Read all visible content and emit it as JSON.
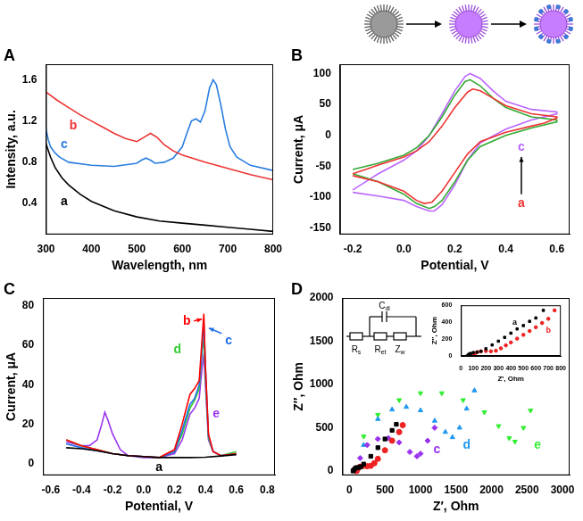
{
  "chart_data": [
    {
      "panel": "A",
      "type": "line",
      "x_label": "Wavelength, nm",
      "y_label": "Intensity, a.u.",
      "xlim": [
        300,
        800
      ],
      "xticks": [
        300,
        400,
        500,
        600,
        700,
        800
      ],
      "ylim": [
        0.1,
        1.75
      ],
      "yticks": [
        0.4,
        0.8,
        1.2,
        1.6
      ],
      "grid": false,
      "series": [
        {
          "name": "a",
          "color": "#000000",
          "line_style": "solid",
          "x": [
            300,
            310,
            320,
            335,
            350,
            375,
            400,
            450,
            500,
            550,
            600,
            650,
            700,
            750,
            800
          ],
          "values": [
            0.98,
            0.85,
            0.75,
            0.65,
            0.58,
            0.49,
            0.42,
            0.33,
            0.27,
            0.23,
            0.21,
            0.19,
            0.17,
            0.15,
            0.13
          ]
        },
        {
          "name": "b",
          "color": "#ee3333",
          "line_style": "solid",
          "x": [
            300,
            325,
            350,
            375,
            400,
            425,
            450,
            475,
            500,
            515,
            530,
            545,
            560,
            580,
            600,
            650,
            700,
            750,
            800
          ],
          "values": [
            1.48,
            1.4,
            1.33,
            1.26,
            1.2,
            1.14,
            1.08,
            1.03,
            1.0,
            1.04,
            1.08,
            1.04,
            0.97,
            0.91,
            0.87,
            0.8,
            0.74,
            0.68,
            0.63
          ]
        },
        {
          "name": "c",
          "color": "#2a7de1",
          "line_style": "solid",
          "x": [
            300,
            305,
            310,
            320,
            330,
            350,
            400,
            450,
            500,
            510,
            520,
            530,
            540,
            560,
            580,
            600,
            610,
            620,
            630,
            640,
            650,
            660,
            668,
            675,
            685,
            695,
            705,
            720,
            750,
            800
          ],
          "values": [
            1.12,
            1.02,
            0.95,
            0.89,
            0.85,
            0.8,
            0.77,
            0.76,
            0.79,
            0.82,
            0.84,
            0.82,
            0.79,
            0.8,
            0.84,
            0.95,
            1.08,
            1.2,
            1.22,
            1.19,
            1.3,
            1.52,
            1.6,
            1.55,
            1.35,
            1.12,
            0.95,
            0.85,
            0.77,
            0.72
          ]
        }
      ]
    },
    {
      "panel": "B",
      "type": "line",
      "x_label": "Potential, V",
      "y_label": "Current, μA",
      "xlim": [
        -0.25,
        0.65
      ],
      "xticks": [
        -0.2,
        {
          "value": 0,
          "label": "0.0"
        },
        0.2,
        0.4,
        0.6
      ],
      "ylim": [
        -160,
        115
      ],
      "yticks": [
        -150,
        -100,
        -50,
        0,
        50,
        100
      ],
      "grid": false,
      "series": [
        {
          "name": "a",
          "color": "#ee3333",
          "line_style": "solid",
          "x": [
            -0.2,
            -0.15,
            -0.1,
            0,
            0.05,
            0.1,
            0.15,
            0.2,
            0.25,
            0.27,
            0.3,
            0.35,
            0.4,
            0.5,
            0.6,
            0.6,
            0.55,
            0.5,
            0.4,
            0.3,
            0.25,
            0.2,
            0.15,
            0.11,
            0.08,
            0.05,
            0,
            -0.1,
            -0.2
          ],
          "values": [
            -62,
            -55,
            -48,
            -35,
            -25,
            -10,
            15,
            45,
            70,
            75,
            72,
            60,
            48,
            35,
            30,
            28,
            20,
            15,
            5,
            -10,
            -30,
            -60,
            -90,
            -108,
            -110,
            -105,
            -90,
            -75,
            -65
          ]
        },
        {
          "color": "#33aa33",
          "line_style": "solid",
          "x": [
            -0.2,
            -0.1,
            0,
            0.05,
            0.1,
            0.15,
            0.2,
            0.24,
            0.26,
            0.3,
            0.35,
            0.4,
            0.5,
            0.6,
            0.6,
            0.5,
            0.4,
            0.3,
            0.25,
            0.2,
            0.15,
            0.12,
            0.1,
            0.05,
            0,
            -0.1,
            -0.2
          ],
          "values": [
            -55,
            -45,
            -32,
            -20,
            0,
            30,
            65,
            87,
            90,
            80,
            60,
            45,
            30,
            25,
            22,
            12,
            0,
            -18,
            -40,
            -75,
            -105,
            -115,
            -118,
            -110,
            -95,
            -75,
            -62
          ]
        },
        {
          "name": "c",
          "color": "#bb66ff",
          "line_style": "solid",
          "x": [
            -0.2,
            -0.15,
            -0.1,
            0,
            0.05,
            0.1,
            0.15,
            0.2,
            0.24,
            0.26,
            0.3,
            0.35,
            0.4,
            0.5,
            0.6,
            0.6,
            0.5,
            0.4,
            0.3,
            0.25,
            0.2,
            0.15,
            0.12,
            0.1,
            0.05,
            0,
            -0.1,
            -0.2
          ],
          "values": [
            -88,
            -75,
            -62,
            -40,
            -25,
            0,
            35,
            72,
            95,
            100,
            92,
            72,
            55,
            42,
            38,
            35,
            25,
            10,
            -12,
            -40,
            -80,
            -112,
            -122,
            -122,
            -115,
            -105,
            -98,
            -92
          ]
        }
      ]
    },
    {
      "panel": "C",
      "type": "line",
      "x_label": "Potential, V",
      "y_label": "Current, μA",
      "xlim": [
        -0.65,
        0.85
      ],
      "xticks": [
        -0.6,
        -0.4,
        -0.2,
        {
          "value": 0,
          "label": "0.0"
        },
        0.2,
        0.4,
        0.6,
        0.8
      ],
      "ylim": [
        -6,
        84
      ],
      "yticks": [
        0,
        20,
        40,
        60,
        80
      ],
      "grid": false,
      "series": [
        {
          "name": "a",
          "color": "#000000",
          "line_style": "solid",
          "x": [
            -0.5,
            -0.4,
            -0.3,
            -0.2,
            -0.1,
            0,
            0.1,
            0.2,
            0.3,
            0.4,
            0.5,
            0.6
          ],
          "values": [
            8,
            7.5,
            6.5,
            5,
            4,
            3.5,
            3,
            3,
            3,
            3.2,
            3.8,
            4.5
          ]
        },
        {
          "name": "b",
          "color": "#ff0000",
          "line_style": "solid",
          "x": [
            -0.5,
            -0.4,
            -0.3,
            -0.2,
            -0.1,
            0,
            0.1,
            0.2,
            0.25,
            0.3,
            0.33,
            0.36,
            0.38,
            0.39,
            0.4,
            0.42,
            0.45,
            0.5,
            0.6
          ],
          "values": [
            12,
            9,
            7,
            5,
            4,
            3.5,
            3,
            7,
            20,
            35,
            38,
            42,
            65,
            76,
            50,
            15,
            6,
            4,
            5
          ]
        },
        {
          "name": "c",
          "color": "#1f6fe5",
          "line_style": "solid",
          "x": [
            -0.5,
            -0.4,
            -0.3,
            -0.2,
            -0.1,
            0,
            0.1,
            0.2,
            0.25,
            0.3,
            0.33,
            0.36,
            0.38,
            0.39,
            0.4,
            0.42,
            0.45,
            0.5,
            0.6
          ],
          "values": [
            10,
            8,
            6.5,
            5,
            4,
            3.5,
            3,
            6,
            17,
            30,
            33,
            40,
            60,
            72,
            50,
            14,
            6,
            4,
            5
          ]
        },
        {
          "name": "d",
          "color": "#33cc33",
          "line_style": "solid",
          "x": [
            -0.5,
            -0.4,
            -0.3,
            -0.2,
            -0.1,
            0,
            0.1,
            0.2,
            0.25,
            0.3,
            0.33,
            0.36,
            0.38,
            0.39,
            0.4,
            0.42,
            0.45,
            0.5,
            0.6
          ],
          "values": [
            12,
            9,
            7,
            5,
            4,
            3.5,
            3,
            6,
            15,
            28,
            32,
            38,
            58,
            63,
            45,
            13,
            6,
            4,
            6
          ]
        },
        {
          "name": "e",
          "color": "#9933ee",
          "line_style": "solid",
          "x": [
            -0.5,
            -0.4,
            -0.35,
            -0.3,
            -0.27,
            -0.25,
            -0.23,
            -0.2,
            -0.15,
            -0.1,
            0,
            0.1,
            0.2,
            0.25,
            0.3,
            0.33,
            0.36,
            0.38,
            0.39,
            0.4,
            0.42,
            0.45,
            0.5,
            0.6
          ],
          "values": [
            11,
            9,
            9,
            12,
            20,
            26,
            22,
            15,
            7,
            4,
            3,
            3,
            5,
            12,
            25,
            28,
            33,
            50,
            55,
            40,
            12,
            6,
            4,
            5
          ]
        }
      ]
    },
    {
      "panel": "D",
      "type": "scatter",
      "x_label": "Z′, Ohm",
      "y_label": "Z″, Ohm",
      "xlim": [
        -100,
        3100
      ],
      "xticks": [
        0,
        500,
        1000,
        1500,
        2000,
        2500,
        3000
      ],
      "ylim": [
        -50,
        2000
      ],
      "yticks": [
        0,
        500,
        1000,
        1500,
        2000
      ],
      "grid": false,
      "series": [
        {
          "color": "#000000",
          "marker": "square",
          "x": [
            50,
            60,
            80,
            100,
            130,
            160,
            200,
            300,
            400,
            500,
            600,
            660
          ],
          "values": [
            0,
            10,
            30,
            40,
            40,
            50,
            80,
            170,
            270,
            370,
            470,
            540
          ]
        },
        {
          "color": "#ee2222",
          "marker": "circle",
          "x": [
            100,
            120,
            150,
            200,
            250,
            300,
            350,
            400,
            500,
            600,
            700,
            750
          ],
          "values": [
            0,
            30,
            50,
            60,
            55,
            60,
            90,
            140,
            240,
            350,
            450,
            530
          ]
        },
        {
          "name": "c",
          "color": "#9933ee",
          "marker": "diamond",
          "x": [
            100,
            150,
            250,
            400,
            550,
            700,
            850,
            950,
            1000,
            1100,
            1200
          ],
          "values": [
            0,
            150,
            300,
            370,
            380,
            330,
            220,
            170,
            200,
            350,
            500
          ]
        },
        {
          "name": "d",
          "color": "#2299ee",
          "marker": "triangle",
          "x": [
            100,
            200,
            400,
            600,
            800,
            1000,
            1200,
            1350,
            1450,
            1550,
            1650,
            1760
          ],
          "values": [
            0,
            300,
            600,
            710,
            740,
            700,
            580,
            450,
            390,
            500,
            720,
            930
          ]
        },
        {
          "name": "e",
          "color": "#33ee33",
          "marker": "triangle_down",
          "x": [
            100,
            200,
            400,
            700,
            1000,
            1300,
            1600,
            1900,
            2100,
            2250,
            2330,
            2450,
            2550
          ],
          "values": [
            0,
            400,
            650,
            820,
            900,
            900,
            820,
            680,
            520,
            380,
            340,
            500,
            700
          ]
        }
      ],
      "circuit": {
        "elements": [
          {
            "symbol": "R",
            "subscript": "s"
          },
          {
            "symbol": "C",
            "subscript": "dl"
          },
          {
            "symbol": "R",
            "subscript": "et"
          },
          {
            "symbol": "Z",
            "subscript": "w"
          }
        ]
      },
      "inset": {
        "type": "scatter",
        "x_label": "Z′, Ohm",
        "y_label": "Z″, Ohm",
        "xlim": [
          0,
          800
        ],
        "xticks": [
          0,
          100,
          200,
          300,
          400,
          500,
          600,
          700,
          800
        ],
        "ylim": [
          0,
          600
        ],
        "yticks": [
          0,
          200,
          400,
          600
        ],
        "grid": false,
        "series": [
          {
            "name": "a",
            "color": "#000000",
            "marker": "square",
            "x": [
              50,
              60,
              70,
              80,
              100,
              130,
              160,
              200,
              250,
              300,
              350,
              400,
              450,
              500,
              550,
              600,
              660
            ],
            "values": [
              0,
              15,
              25,
              30,
              40,
              45,
              55,
              85,
              130,
              175,
              220,
              270,
              320,
              360,
              410,
              450,
              540
            ]
          },
          {
            "name": "b",
            "color": "#ee2222",
            "marker": "circle",
            "x": [
              100,
              110,
              130,
              160,
              200,
              240,
              280,
              320,
              360,
              400,
              450,
              500,
              550,
              600,
              650,
              700,
              750
            ],
            "values": [
              0,
              25,
              45,
              55,
              58,
              55,
              62,
              90,
              125,
              160,
              205,
              250,
              295,
              340,
              390,
              440,
              540
            ]
          }
        ]
      }
    }
  ]
}
